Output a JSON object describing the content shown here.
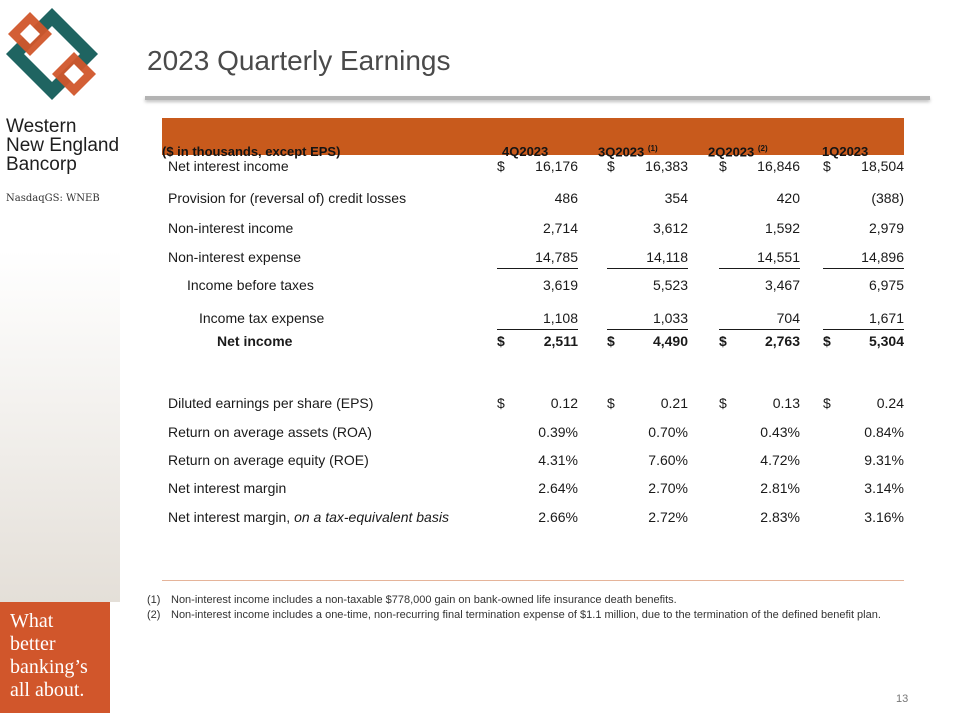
{
  "brand": {
    "name_lines": [
      "Western",
      "New England",
      "Bancorp"
    ],
    "ticker": "NasdaqGS: WNEB",
    "tagline_lines": [
      "What",
      "better",
      "banking’s",
      "all about."
    ],
    "colors": {
      "orange": "#d1562b",
      "teal": "#1f6461"
    }
  },
  "title": "2023 Quarterly Earnings",
  "table": {
    "header_label": "($ in thousands, except EPS)",
    "columns": [
      {
        "label": "4Q2023",
        "note": ""
      },
      {
        "label": "3Q2023",
        "note": "(1)"
      },
      {
        "label": "2Q2023",
        "note": "(2)"
      },
      {
        "label": "1Q2023",
        "note": ""
      }
    ],
    "rows": [
      {
        "label": "Net interest income",
        "dollar": true,
        "values": [
          "16,176",
          "16,383",
          "16,846",
          "18,504"
        ]
      },
      {
        "label": "Provision for (reversal of) credit losses",
        "dollar": false,
        "values": [
          "486",
          "354",
          "420",
          "(388)"
        ]
      },
      {
        "label": "Non-interest income",
        "dollar": false,
        "values": [
          "2,714",
          "3,612",
          "1,592",
          "2,979"
        ]
      },
      {
        "label": "Non-interest expense",
        "dollar": false,
        "values": [
          "14,785",
          "14,118",
          "14,551",
          "14,896"
        ]
      },
      {
        "label": "Income before taxes",
        "dollar": false,
        "values": [
          "3,619",
          "5,523",
          "3,467",
          "6,975"
        ]
      },
      {
        "label": "Income tax expense",
        "dollar": false,
        "values": [
          "1,108",
          "1,033",
          "704",
          "1,671"
        ]
      },
      {
        "label": "Net income",
        "dollar": true,
        "values": [
          "2,511",
          "4,490",
          "2,763",
          "5,304"
        ]
      },
      {
        "label": "Diluted earnings per share (EPS)",
        "dollar": true,
        "values": [
          "0.12",
          "0.21",
          "0.13",
          "0.24"
        ]
      },
      {
        "label": "Return on average assets (ROA)",
        "dollar": false,
        "values": [
          "0.39%",
          "0.70%",
          "0.43%",
          "0.84%"
        ]
      },
      {
        "label": "Return on average equity (ROE)",
        "dollar": false,
        "values": [
          "4.31%",
          "7.60%",
          "4.72%",
          "9.31%"
        ]
      },
      {
        "label": "Net interest margin",
        "dollar": false,
        "values": [
          "2.64%",
          "2.70%",
          "2.81%",
          "3.14%"
        ]
      },
      {
        "label": "Net interest margin, ",
        "label_italic": "on a tax-equivalent basis",
        "dollar": false,
        "values": [
          "2.66%",
          "2.72%",
          "2.83%",
          "3.16%"
        ]
      }
    ]
  },
  "footnotes": [
    {
      "num": "(1)",
      "text": "Non-interest income includes a non-taxable $778,000 gain on bank-owned life insurance death benefits."
    },
    {
      "num": "(2)",
      "text": "Non-interest income includes a one-time, non-recurring final termination expense of $1.1 million, due to the termination of the defined benefit plan."
    }
  ],
  "page_number": "13"
}
